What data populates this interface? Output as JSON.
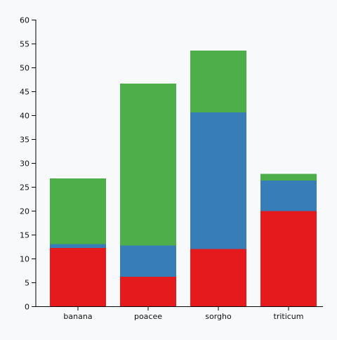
{
  "chart_data": {
    "type": "bar",
    "stacked": true,
    "title": "",
    "xlabel": "",
    "ylabel": "",
    "ylim": [
      0,
      60
    ],
    "yticks": [
      0,
      5,
      10,
      15,
      20,
      25,
      30,
      35,
      40,
      45,
      50,
      55,
      60
    ],
    "grid": false,
    "legend": "none",
    "categories": [
      "banana",
      "poacee",
      "sorgho",
      "triticum"
    ],
    "series": [
      {
        "color": "#e41a1c",
        "values": [
          12.2,
          6.2,
          12.0,
          19.9
        ]
      },
      {
        "color": "#377eb8",
        "values": [
          0.8,
          6.5,
          28.6,
          6.4
        ]
      },
      {
        "color": "#4daf4a",
        "values": [
          13.8,
          33.9,
          12.9,
          1.4
        ]
      }
    ]
  }
}
